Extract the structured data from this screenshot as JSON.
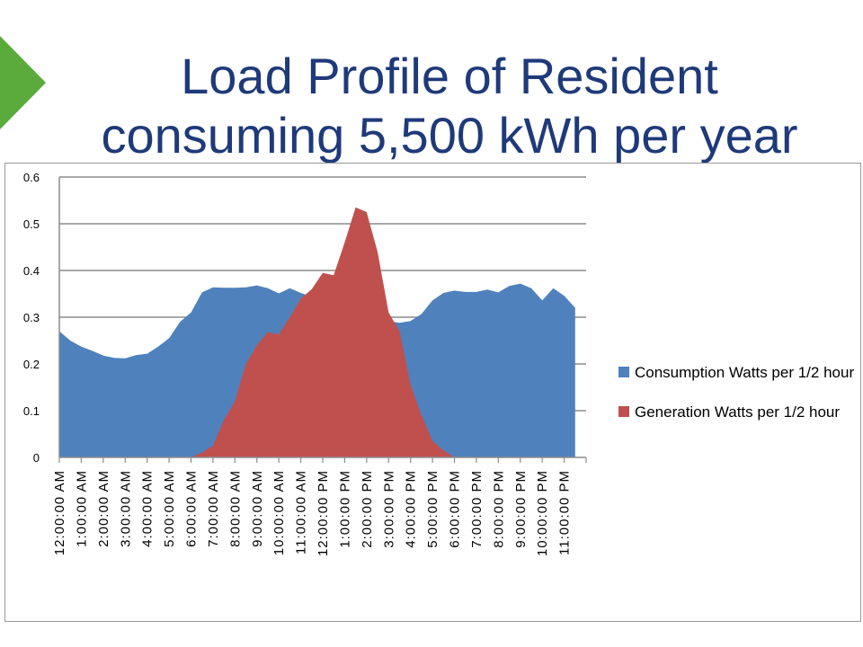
{
  "slide": {
    "title_line1": "Load Profile of Resident",
    "title_line2": "consuming 5,500 kWh per year",
    "accent_color": "#5aaa3c",
    "title_color": "#1f3a7a"
  },
  "chart_data": {
    "type": "area",
    "title": "",
    "xlabel": "",
    "ylabel": "",
    "ylim": [
      0,
      0.6
    ],
    "y_ticks": [
      "0",
      "0.1",
      "0.2",
      "0.3",
      "0.4",
      "0.5",
      "0.6"
    ],
    "grid": true,
    "legend_position": "right",
    "x_tick_labels": [
      "12:00:00 AM",
      "1:00:00 AM",
      "2:00:00 AM",
      "3:00:00 AM",
      "4:00:00 AM",
      "5:00:00 AM",
      "6:00:00 AM",
      "7:00:00 AM",
      "8:00:00 AM",
      "9:00:00 AM",
      "10:00:00 AM",
      "11:00:00 AM",
      "12:00:00 PM",
      "1:00:00 PM",
      "2:00:00 PM",
      "3:00:00 PM",
      "4:00:00 PM",
      "5:00:00 PM",
      "6:00:00 PM",
      "7:00:00 PM",
      "8:00:00 PM",
      "9:00:00 PM",
      "10:00:00 PM",
      "11:00:00 PM"
    ],
    "x_hours": [
      0,
      0.5,
      1,
      1.5,
      2,
      2.5,
      3,
      3.5,
      4,
      4.5,
      5,
      5.5,
      6,
      6.5,
      7,
      7.5,
      8,
      8.5,
      9,
      9.5,
      10,
      10.5,
      11,
      11.5,
      12,
      12.5,
      13,
      13.5,
      14,
      14.5,
      15,
      15.5,
      16,
      16.5,
      17,
      17.5,
      18,
      18.5,
      19,
      19.5,
      20,
      20.5,
      21,
      21.5,
      22,
      22.5,
      23,
      23.5
    ],
    "series": [
      {
        "name": "Consumption  Watts per 1/2 hour",
        "color": "#4f81bd",
        "values": [
          0.27,
          0.25,
          0.237,
          0.228,
          0.218,
          0.213,
          0.212,
          0.219,
          0.222,
          0.237,
          0.255,
          0.29,
          0.31,
          0.353,
          0.364,
          0.363,
          0.363,
          0.364,
          0.368,
          0.362,
          0.351,
          0.362,
          0.352,
          0.344,
          0.368,
          0.358,
          0.352,
          0.328,
          0.314,
          0.308,
          0.292,
          0.288,
          0.292,
          0.307,
          0.336,
          0.352,
          0.357,
          0.354,
          0.354,
          0.359,
          0.353,
          0.367,
          0.372,
          0.362,
          0.336,
          0.362,
          0.346,
          0.32
        ]
      },
      {
        "name": "Generation Watts per 1/2 hour",
        "color": "#c0504d",
        "values": [
          0,
          0,
          0,
          0,
          0,
          0,
          0,
          0,
          0,
          0,
          0,
          0,
          0,
          0.01,
          0.025,
          0.08,
          0.12,
          0.2,
          0.24,
          0.268,
          0.263,
          0.3,
          0.34,
          0.36,
          0.395,
          0.39,
          0.46,
          0.535,
          0.525,
          0.44,
          0.31,
          0.27,
          0.155,
          0.09,
          0.035,
          0.015,
          0,
          0,
          0,
          0,
          0,
          0,
          0,
          0,
          0,
          0,
          0,
          0
        ]
      }
    ]
  }
}
